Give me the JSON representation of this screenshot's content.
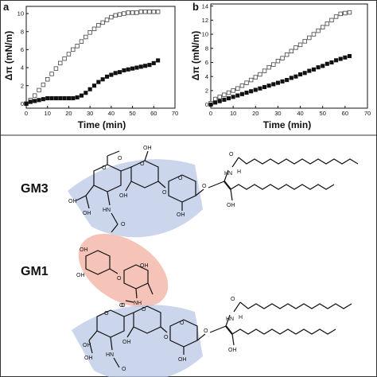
{
  "chart_data": [
    {
      "type": "scatter",
      "panel": "a",
      "xlabel": "Time (min)",
      "ylabel": "Δπ (mN/m)",
      "xlim": [
        0,
        70
      ],
      "ylim": [
        -0.5,
        10.8
      ],
      "xticks": [
        0,
        10,
        20,
        30,
        40,
        50,
        60,
        70
      ],
      "yticks": [
        0,
        2,
        4,
        6,
        8,
        10
      ],
      "series": [
        {
          "marker": "open-square",
          "x": [
            0,
            2,
            4,
            6,
            8,
            10,
            12,
            14,
            16,
            18,
            20,
            22,
            24,
            26,
            28,
            30,
            32,
            34,
            36,
            38,
            40,
            42,
            44,
            46,
            48,
            50,
            52,
            54,
            56,
            58,
            60,
            62
          ],
          "y": [
            0.0,
            0.4,
            0.9,
            1.5,
            2.1,
            2.7,
            3.3,
            3.9,
            4.5,
            5.0,
            5.5,
            6.0,
            6.4,
            6.9,
            7.4,
            7.9,
            8.3,
            8.7,
            9.0,
            9.3,
            9.6,
            9.8,
            9.9,
            10.0,
            10.1,
            10.1,
            10.1,
            10.2,
            10.2,
            10.2,
            10.2,
            10.2
          ]
        },
        {
          "marker": "filled-square",
          "x": [
            0,
            2,
            4,
            6,
            8,
            10,
            12,
            14,
            16,
            18,
            20,
            22,
            24,
            26,
            28,
            30,
            32,
            34,
            36,
            38,
            40,
            42,
            44,
            46,
            48,
            50,
            52,
            54,
            56,
            58,
            60,
            62
          ],
          "y": [
            0.0,
            0.2,
            0.3,
            0.4,
            0.5,
            0.6,
            0.6,
            0.6,
            0.6,
            0.6,
            0.6,
            0.6,
            0.7,
            0.9,
            1.2,
            1.6,
            2.0,
            2.4,
            2.7,
            3.0,
            3.2,
            3.4,
            3.5,
            3.7,
            3.8,
            3.9,
            4.0,
            4.1,
            4.2,
            4.3,
            4.5,
            4.8
          ]
        }
      ]
    },
    {
      "type": "scatter",
      "panel": "b",
      "xlabel": "Time (min)",
      "ylabel": "Δπ (mN/m)",
      "xlim": [
        0,
        70
      ],
      "ylim": [
        -0.5,
        14.3
      ],
      "xticks": [
        0,
        10,
        20,
        30,
        40,
        50,
        60,
        70
      ],
      "yticks": [
        0,
        2,
        4,
        6,
        8,
        10,
        12,
        14
      ],
      "series": [
        {
          "marker": "open-square",
          "x": [
            0,
            2,
            4,
            6,
            8,
            10,
            12,
            14,
            16,
            18,
            20,
            22,
            24,
            26,
            28,
            30,
            32,
            34,
            36,
            38,
            40,
            42,
            44,
            46,
            48,
            50,
            52,
            54,
            56,
            58,
            60,
            62
          ],
          "y": [
            0.2,
            0.8,
            1.1,
            1.4,
            1.7,
            2.0,
            2.3,
            2.7,
            3.1,
            3.5,
            3.9,
            4.3,
            4.8,
            5.3,
            5.7,
            6.2,
            6.6,
            7.1,
            7.6,
            8.1,
            8.5,
            9.0,
            9.5,
            10.0,
            10.5,
            11.0,
            11.5,
            12.0,
            12.5,
            12.9,
            13.0,
            13.1
          ]
        },
        {
          "marker": "filled-square",
          "x": [
            0,
            2,
            4,
            6,
            8,
            10,
            12,
            14,
            16,
            18,
            20,
            22,
            24,
            26,
            28,
            30,
            32,
            34,
            36,
            38,
            40,
            42,
            44,
            46,
            48,
            50,
            52,
            54,
            56,
            58,
            60,
            62
          ],
          "y": [
            0.0,
            0.3,
            0.5,
            0.7,
            0.9,
            1.1,
            1.3,
            1.5,
            1.7,
            1.9,
            2.1,
            2.3,
            2.5,
            2.7,
            2.9,
            3.1,
            3.3,
            3.5,
            3.8,
            4.0,
            4.3,
            4.5,
            4.8,
            5.0,
            5.3,
            5.5,
            5.8,
            6.0,
            6.3,
            6.5,
            6.7,
            6.9
          ]
        }
      ]
    }
  ],
  "molecules": [
    {
      "name": "GM3"
    },
    {
      "name": "GM1"
    }
  ],
  "atoms": {
    "O": "O",
    "OH": "OH",
    "H": "H",
    "NH": "NH",
    "HN": "HN"
  },
  "colors": {
    "blue_region": "#b9c7e6",
    "red_region": "#f2b4a6",
    "marker_fill": "#111111",
    "open_marker_stroke": "#555555"
  }
}
